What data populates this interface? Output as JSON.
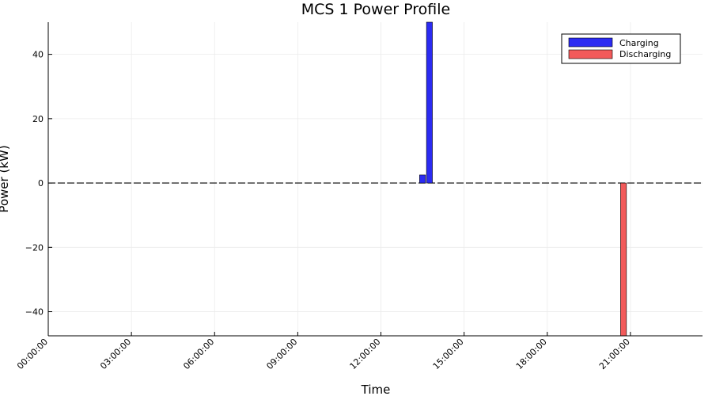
{
  "chart_data": {
    "type": "bar",
    "title": "MCS 1 Power Profile",
    "xlabel": "Time",
    "ylabel": "Power (kW)",
    "x_tick_labels": [
      "00:00:00",
      "03:00:00",
      "06:00:00",
      "09:00:00",
      "12:00:00",
      "15:00:00",
      "18:00:00",
      "21:00:00"
    ],
    "x_range_hours": [
      0,
      23.6
    ],
    "ylim": [
      -47.5,
      50
    ],
    "y_ticks": [
      -40,
      -20,
      0,
      20,
      40
    ],
    "y_tick_labels": [
      "−40",
      "−20",
      "0",
      "20",
      "40"
    ],
    "grid": true,
    "legend_position": "top-right",
    "series": [
      {
        "name": "Charging",
        "color": "#2b2bf2",
        "bars": [
          {
            "time": "13:30:00",
            "value": 2.5
          },
          {
            "time": "13:45:00",
            "value": 50
          }
        ]
      },
      {
        "name": "Discharging",
        "color": "#f25a5a",
        "bars": [
          {
            "time": "20:45:00",
            "value": -47.5
          }
        ]
      }
    ],
    "zero_line": {
      "style": "dashed"
    }
  }
}
